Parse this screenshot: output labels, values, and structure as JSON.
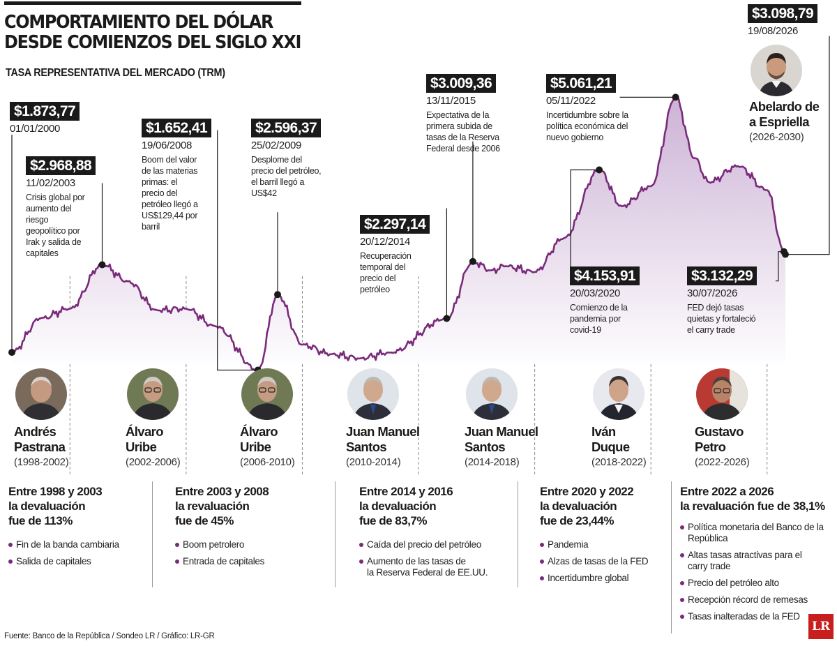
{
  "title_lines": [
    "COMPORTAMIENTO DEL DÓLAR",
    "DESDE COMIENZOS DEL SIGLO XXI"
  ],
  "subtitle": "TASA REPRESENTATIVA DEL MERCADO (TRM)",
  "annotations": [
    {
      "value": "$1.873,77",
      "date": "01/01/2000",
      "note": []
    },
    {
      "value": "$2.968,88",
      "date": "11/02/2003",
      "note": [
        "Crisis global por",
        "aumento del",
        "riesgo",
        "geopolítico por",
        "Irak y salida de",
        "capitales"
      ]
    },
    {
      "value": "$1.652,41",
      "date": "19/06/2008",
      "note": [
        "Boom del valor",
        "de las materias",
        "primas: el",
        "precio del",
        "petróleo llegó a",
        "US$129,44 por",
        "barril"
      ]
    },
    {
      "value": "$2.596,37",
      "date": "25/02/2009",
      "note": [
        "Desplome del",
        "precio del petróleo,",
        "el barril llegó a",
        "US$42"
      ]
    },
    {
      "value": "$2.297,14",
      "date": "20/12/2014",
      "note": [
        "Recuperación",
        "temporal del",
        "precio del",
        "petróleo"
      ]
    },
    {
      "value": "$3.009,36",
      "date": "13/11/2015",
      "note": [
        "Expectativa de la",
        "primera subida de",
        "tasas de la Reserva",
        "Federal desde 2006"
      ]
    },
    {
      "value": "$5.061,21",
      "date": "05/11/2022",
      "note": [
        "Incertidumbre sobre la",
        "política económica del",
        "nuevo gobierno"
      ]
    },
    {
      "value": "$4.153,91",
      "date": "20/03/2020",
      "note": [
        "Comienzo de la",
        "pandemia por",
        "covid-19"
      ]
    },
    {
      "value": "$3.132,29",
      "date": "30/07/2026",
      "note": [
        "FED dejó tasas",
        "quietas y fortaleció",
        "el carry trade"
      ]
    },
    {
      "value": "$3.098,79",
      "date": "19/08/2026",
      "note": []
    }
  ],
  "presidents": [
    {
      "name": [
        "Andrés",
        "Pastrana"
      ],
      "term": "(1998-2002)"
    },
    {
      "name": [
        "Álvaro",
        "Uribe"
      ],
      "term": "(2002-2006)"
    },
    {
      "name": [
        "Álvaro",
        "Uribe"
      ],
      "term": "(2006-2010)"
    },
    {
      "name": [
        "Juan Manuel",
        "Santos"
      ],
      "term": "(2010-2014)"
    },
    {
      "name": [
        "Juan Manuel",
        "Santos"
      ],
      "term": "(2014-2018)"
    },
    {
      "name": [
        "Iván",
        "Duque"
      ],
      "term": "(2018-2022)"
    },
    {
      "name": [
        "Gustavo",
        "Petro"
      ],
      "term": "(2022-2026)"
    }
  ],
  "next_president": {
    "name": [
      "Abelardo de",
      "a Espriella"
    ],
    "term": "(2026-2030)"
  },
  "sections": [
    {
      "head": [
        "Entre 1998 y 2003",
        "la devaluación",
        "fue de 113%"
      ],
      "items": [
        [
          "Fin de la banda cambiaria"
        ],
        [
          "Salida de capitales"
        ]
      ]
    },
    {
      "head": [
        "Entre 2003 y 2008",
        "la revaluación",
        "fue de 45%"
      ],
      "items": [
        [
          "Boom petrolero"
        ],
        [
          "Entrada de capitales"
        ]
      ]
    },
    {
      "head": [
        "Entre 2014 y 2016",
        "la devaluación",
        "fue de 83,7%"
      ],
      "items": [
        [
          "Caída del precio del petróleo"
        ],
        [
          "Aumento de las tasas de",
          "la Reserva Federal de EE.UU."
        ]
      ]
    },
    {
      "head": [
        "Entre 2020 y 2022",
        "la devaluación",
        "fue de 23,44%"
      ],
      "items": [
        [
          "Pandemia"
        ],
        [
          "Alzas de tasas de la FED"
        ],
        [
          "Incertidumbre global"
        ]
      ]
    },
    {
      "head": [
        "Entre 2022 a 2026",
        "la revaluación fue de 38,1%"
      ],
      "items": [
        [
          "Política monetaria del Banco de la",
          "República"
        ],
        [
          "Altas tasas atractivas para el",
          "carry trade"
        ],
        [
          "Precio del petróleo alto"
        ],
        [
          "Recepción récord de remesas"
        ],
        [
          "Tasas inalteradas de la FED"
        ]
      ]
    }
  ],
  "footer": "Fuente: Banco de la República / Sondeo LR / Gráfico: LR-GR",
  "logo": "LR",
  "colors": {
    "line": "#7a2a7a",
    "fill_top": "#cdb3d6",
    "fill_bottom": "#ffffff",
    "ink": "#1a1a1a"
  },
  "chart_data": {
    "type": "area",
    "x": [
      2000.0,
      2001.0,
      2002.0,
      2003.11,
      2004.0,
      2005.0,
      2006.0,
      2007.0,
      2008.47,
      2009.15,
      2010.0,
      2011.0,
      2012.0,
      2013.0,
      2014.97,
      2015.87,
      2016.5,
      2017.0,
      2018.0,
      2019.0,
      2020.22,
      2021.0,
      2022.0,
      2022.85,
      2023.5,
      2024.0,
      2025.0,
      2026.0,
      2026.58,
      2026.63
    ],
    "values": [
      1873.77,
      2300,
      2420,
      2968.88,
      2760,
      2400,
      2420,
      2200,
      1652.41,
      2596.37,
      1970,
      1850,
      1800,
      1870,
      2297.14,
      3009.36,
      2900,
      2950,
      2880,
      3300,
      4153.91,
      3700,
      3950,
      5061.21,
      4300,
      4000,
      4200,
      3900,
      3132.29,
      3098.79
    ],
    "ylim": [
      1500,
      5300
    ],
    "grid": false
  }
}
